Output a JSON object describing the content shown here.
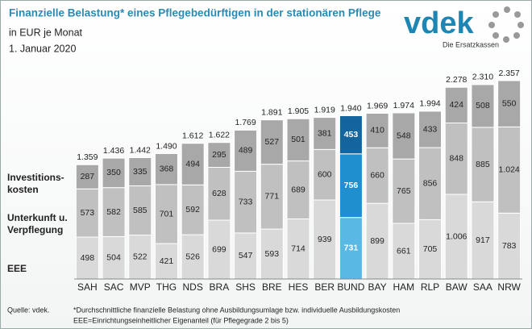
{
  "chart_data": {
    "type": "stacked_bar",
    "title": "Finanzielle Belastung* eines Pflegebedürftigen in der stationären Pflege",
    "subtitle": [
      "in EUR je Monat",
      "1. Januar 2020"
    ],
    "logo": {
      "name": "vdek",
      "tagline": "Die Ersatzkassen"
    },
    "categories": [
      "SAH",
      "SAC",
      "MVP",
      "THG",
      "NDS",
      "BRA",
      "SHS",
      "BRE",
      "HES",
      "BER",
      "BUND",
      "BAY",
      "HAM",
      "RLP",
      "BAW",
      "SAA",
      "NRW"
    ],
    "series": [
      {
        "name": "EEE",
        "color": "#d9d9d9",
        "highlight_color": "#5ab8e4",
        "values": [
          498,
          504,
          522,
          421,
          526,
          699,
          547,
          593,
          714,
          939,
          731,
          899,
          661,
          705,
          1006,
          917,
          783
        ],
        "value_labels": [
          "498",
          "504",
          "522",
          "421",
          "526",
          "699",
          "547",
          "593",
          "714",
          "939",
          "731",
          "899",
          "661",
          "705",
          "1.006",
          "917",
          "783"
        ]
      },
      {
        "name": "Unterkunft u.\nVerpflegung",
        "color": "#c0c0c0",
        "highlight_color": "#1f8fd0",
        "values": [
          573,
          582,
          585,
          701,
          592,
          628,
          733,
          771,
          689,
          600,
          756,
          660,
          765,
          856,
          848,
          885,
          1024
        ],
        "value_labels": [
          "573",
          "582",
          "585",
          "701",
          "592",
          "628",
          "733",
          "771",
          "689",
          "600",
          "756",
          "660",
          "765",
          "856",
          "848",
          "885",
          "1.024"
        ]
      },
      {
        "name": "Investitions-\nkosten",
        "color": "#a8a8a8",
        "highlight_color": "#14649e",
        "values": [
          287,
          350,
          335,
          368,
          494,
          295,
          489,
          527,
          501,
          381,
          453,
          410,
          548,
          433,
          424,
          508,
          550
        ],
        "value_labels": [
          "287",
          "350",
          "335",
          "368",
          "494",
          "295",
          "489",
          "527",
          "501",
          "381",
          "453",
          "410",
          "548",
          "433",
          "424",
          "508",
          "550"
        ]
      }
    ],
    "totals": {
      "values": [
        1359,
        1436,
        1442,
        1490,
        1612,
        1622,
        1769,
        1891,
        1905,
        1919,
        1940,
        1969,
        1974,
        1994,
        2278,
        2310,
        2357
      ],
      "value_labels": [
        "1.359",
        "1.436",
        "1.442",
        "1.490",
        "1.612",
        "1.622",
        "1.769",
        "1.891",
        "1.905",
        "1.919",
        "1.940",
        "1.969",
        "1.974",
        "1.994",
        "2.278",
        "2.310",
        "2.357"
      ]
    },
    "highlight": "BUND",
    "source": "Quelle: vdek.",
    "notes": [
      "*Durchschnittliche finanzielle Belastung ohne Ausbildungsumlage bzw. individuelle Ausbildungskosten",
      "EEE=Einrichtungseinheitlicher Eigenanteil  (für Pflegegrade 2 bis 5)"
    ]
  }
}
